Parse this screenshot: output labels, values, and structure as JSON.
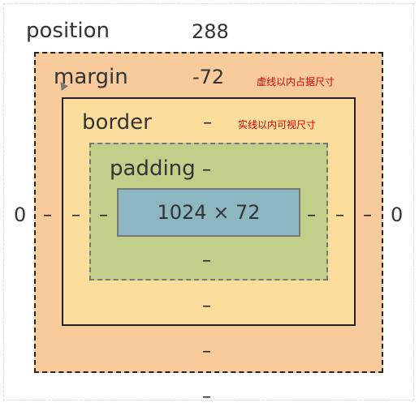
{
  "labels": {
    "position": "position",
    "margin": "margin",
    "border": "border",
    "padding": "padding"
  },
  "values": {
    "position_top": "288",
    "margin_top": "-72",
    "border_top": "–",
    "padding_top": "–",
    "content_size": "1024 × 72",
    "padding_bottom": "–",
    "border_bottom": "–",
    "margin_bottom": "–",
    "position_bottom": "–",
    "position_left": "0",
    "margin_left": "–",
    "border_left": "–",
    "padding_left": "–",
    "padding_right": "–",
    "border_right": "–",
    "margin_right": "–",
    "position_right": "0"
  },
  "notes": {
    "dashed_note": "虚线以内占据尺寸",
    "solid_note": "实线以内可视尺寸"
  },
  "colors": {
    "margin": "#f8cb9c",
    "border": "#fddd9b",
    "padding": "#c2cf8a",
    "content": "#8cb6c0",
    "note": "#e00000"
  },
  "icons": {
    "cursor": "mouse-pointer-icon"
  }
}
